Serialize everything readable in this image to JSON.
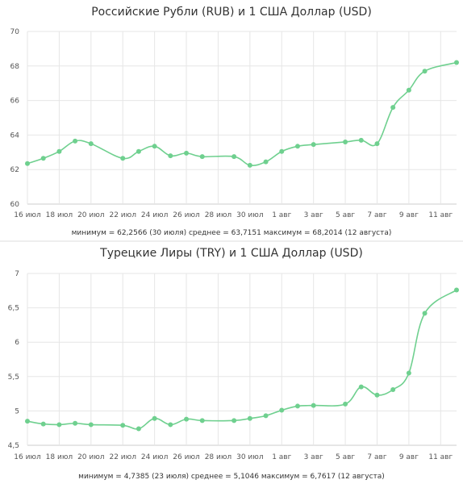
{
  "colors": {
    "series": "#6fd08f",
    "grid": "#e6e6e6",
    "text": "#333333"
  },
  "chart_data": [
    {
      "type": "line",
      "title": "Российские Рубли (RUB) и 1 США Доллар (USD)",
      "stats_text": "минимум = 62,2566 (30 июля) среднее = 63,7151 максимум = 68,2014 (12 августа)",
      "xlabel": "",
      "ylabel": "",
      "ylim": [
        60,
        70
      ],
      "yticks": [
        60,
        62,
        64,
        66,
        68,
        70
      ],
      "ytick_labels": [
        "60",
        "62",
        "64",
        "66",
        "68",
        "70"
      ],
      "xlim": [
        16,
        43
      ],
      "xticks": [
        16,
        18,
        20,
        22,
        24,
        26,
        28,
        30,
        32,
        34,
        36,
        38,
        40,
        42
      ],
      "xtick_labels": [
        "16 июл",
        "18 июл",
        "20 июл",
        "22 июл",
        "24 июл",
        "26 июл",
        "28 июл",
        "30 июл",
        "1 авг",
        "3 авг",
        "5 авг",
        "7 авг",
        "9 авг",
        "11 авг"
      ],
      "grid": true,
      "series": [
        {
          "name": "",
          "x": [
            16,
            17,
            18,
            19,
            20,
            22,
            23,
            24,
            25,
            26,
            27,
            29,
            30,
            31,
            32,
            33,
            34,
            36,
            37,
            38,
            39,
            40,
            41,
            43
          ],
          "y": [
            62.35,
            62.65,
            63.05,
            63.65,
            63.5,
            62.65,
            63.05,
            63.35,
            62.8,
            62.95,
            62.75,
            62.75,
            62.25,
            62.45,
            63.05,
            63.35,
            63.45,
            63.6,
            63.7,
            63.5,
            65.6,
            66.6,
            67.7,
            68.2
          ]
        }
      ]
    },
    {
      "type": "line",
      "title": "Турецкие Лиры (TRY) и 1 США Доллар (USD)",
      "stats_text": "минимум = 4,7385 (23 июля) среднее = 5,1046 максимум = 6,7617 (12 августа)",
      "xlabel": "",
      "ylabel": "",
      "ylim": [
        4.5,
        7
      ],
      "yticks": [
        4.5,
        5,
        5.5,
        6,
        6.5,
        7
      ],
      "ytick_labels": [
        "4,5",
        "5",
        "5,5",
        "6",
        "6,5",
        "7"
      ],
      "xlim": [
        16,
        43
      ],
      "xticks": [
        16,
        18,
        20,
        22,
        24,
        26,
        28,
        30,
        32,
        34,
        36,
        38,
        40,
        42
      ],
      "xtick_labels": [
        "16 июл",
        "18 июл",
        "20 июл",
        "22 июл",
        "24 июл",
        "26 июл",
        "28 июл",
        "30 июл",
        "1 авг",
        "3 авг",
        "5 авг",
        "7 авг",
        "9 авг",
        "11 авг"
      ],
      "grid": true,
      "series": [
        {
          "name": "",
          "x": [
            16,
            17,
            18,
            19,
            20,
            22,
            23,
            24,
            25,
            26,
            27,
            29,
            30,
            31,
            32,
            33,
            34,
            36,
            37,
            38,
            39,
            40,
            41,
            43
          ],
          "y": [
            4.85,
            4.81,
            4.8,
            4.82,
            4.8,
            4.79,
            4.74,
            4.89,
            4.8,
            4.88,
            4.86,
            4.86,
            4.89,
            4.93,
            5.01,
            5.07,
            5.08,
            5.1,
            5.35,
            5.23,
            5.31,
            5.55,
            6.42,
            6.76
          ]
        }
      ]
    }
  ]
}
